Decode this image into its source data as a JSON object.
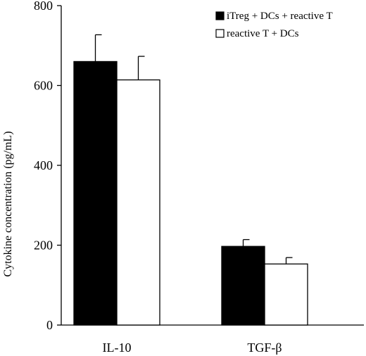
{
  "chart_data": {
    "type": "bar",
    "title": "",
    "xlabel": "",
    "ylabel": "Cytokine concentration (pg/mL)",
    "ylim": [
      0,
      800
    ],
    "yticks": [
      0,
      200,
      400,
      600,
      800
    ],
    "categories": [
      "IL-10",
      "TGF-β"
    ],
    "series": [
      {
        "name": "iTreg + DCs + reactive T",
        "values": [
          660,
          197
        ],
        "errors": [
          67,
          17
        ],
        "fill": "#000000"
      },
      {
        "name": "reactive T + DCs",
        "values": [
          614,
          153
        ],
        "errors": [
          59,
          16
        ],
        "fill": "#ffffff"
      }
    ],
    "legend_position": "top-right",
    "grid": false,
    "error_bars": "upper"
  }
}
